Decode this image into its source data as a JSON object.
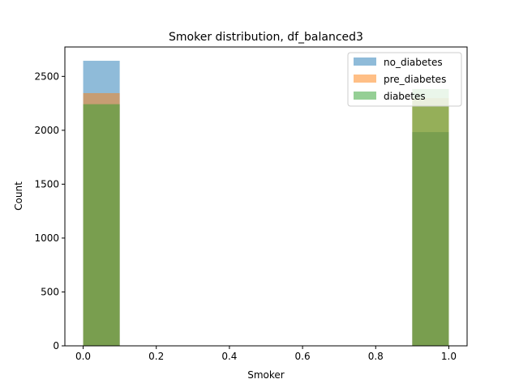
{
  "chart_data": {
    "type": "histogram",
    "title": "Smoker distribution, df_balanced3",
    "xlabel": "Smoker",
    "ylabel": "Count",
    "xlim": [
      -0.05,
      1.05
    ],
    "ylim": [
      0,
      2773
    ],
    "xticks": [
      "0.0",
      "0.2",
      "0.4",
      "0.6",
      "0.8",
      "1.0"
    ],
    "xtick_values": [
      0.0,
      0.2,
      0.4,
      0.6,
      0.8,
      1.0
    ],
    "yticks": [
      "0",
      "500",
      "1000",
      "1500",
      "2000",
      "2500"
    ],
    "ytick_values": [
      0,
      500,
      1000,
      1500,
      2000,
      2500
    ],
    "bins": [
      [
        0.0,
        0.1
      ],
      [
        0.9,
        1.0
      ]
    ],
    "series": [
      {
        "name": "no_diabetes",
        "color": "#1f77b4",
        "values": [
          2645,
          1983
        ]
      },
      {
        "name": "pre_diabetes",
        "color": "#ff7f0e",
        "values": [
          2345,
          2298
        ]
      },
      {
        "name": "diabetes",
        "color": "#2ca02c",
        "values": [
          2242,
          2383
        ]
      }
    ],
    "alpha": 0.5,
    "legend_position": "top-right",
    "grid": false
  }
}
